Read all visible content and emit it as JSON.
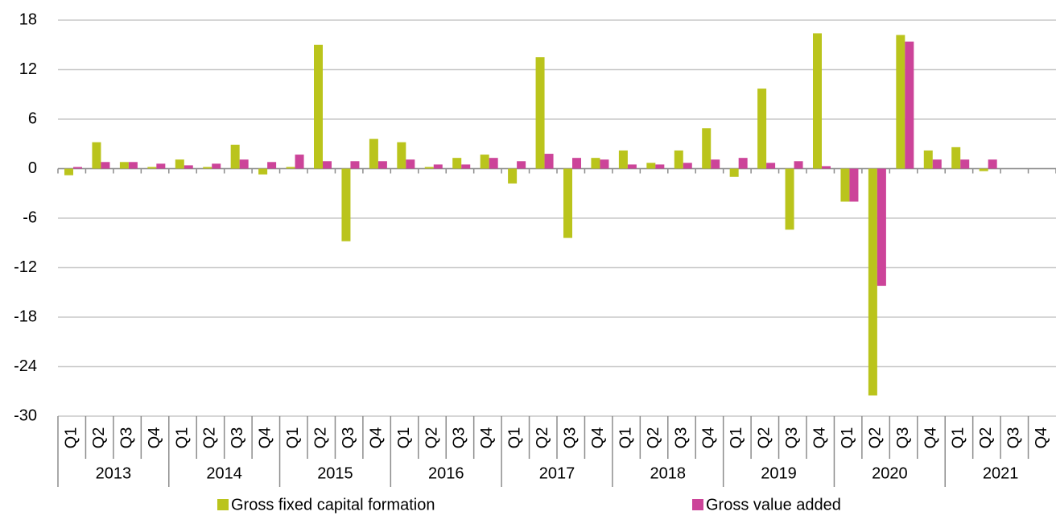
{
  "chart_data": {
    "type": "bar",
    "categories": [
      "Q1",
      "Q2",
      "Q3",
      "Q4",
      "Q1",
      "Q2",
      "Q3",
      "Q4",
      "Q1",
      "Q2",
      "Q3",
      "Q4",
      "Q1",
      "Q2",
      "Q3",
      "Q4",
      "Q1",
      "Q2",
      "Q3",
      "Q4",
      "Q1",
      "Q2",
      "Q3",
      "Q4",
      "Q1",
      "Q2",
      "Q3",
      "Q4",
      "Q1",
      "Q2",
      "Q3",
      "Q4",
      "Q1",
      "Q2",
      "Q3",
      "Q4"
    ],
    "years": [
      "2013",
      "2014",
      "2015",
      "2016",
      "2017",
      "2018",
      "2019",
      "2020",
      "2021"
    ],
    "series": [
      {
        "name": "Gross fixed capital formation",
        "color": "#bac41c",
        "values": [
          -0.8,
          3.2,
          0.8,
          0.2,
          1.1,
          0.2,
          2.9,
          -0.7,
          0.2,
          15.0,
          -8.8,
          3.6,
          3.2,
          0.2,
          1.3,
          1.7,
          -1.8,
          13.5,
          -8.4,
          1.3,
          2.2,
          0.7,
          2.2,
          4.9,
          -1.0,
          9.7,
          -7.4,
          16.4,
          -4.0,
          -27.5,
          16.2,
          2.2,
          2.6,
          -0.3,
          null,
          null
        ]
      },
      {
        "name": "Gross value added",
        "color": "#cc4499",
        "values": [
          0.2,
          0.8,
          0.8,
          0.6,
          0.4,
          0.6,
          1.1,
          0.8,
          1.7,
          0.9,
          0.9,
          0.9,
          1.1,
          0.5,
          0.5,
          1.3,
          0.9,
          1.8,
          1.3,
          1.1,
          0.5,
          0.5,
          0.7,
          1.1,
          1.3,
          0.7,
          0.9,
          0.3,
          -4.0,
          -14.2,
          15.4,
          1.1,
          1.1,
          1.1,
          null,
          null
        ]
      }
    ],
    "ylim": [
      -30,
      18
    ],
    "yticks": [
      -30,
      -24,
      -18,
      -12,
      -6,
      0,
      6,
      12,
      18
    ],
    "grid": true,
    "legend": "bottom"
  }
}
